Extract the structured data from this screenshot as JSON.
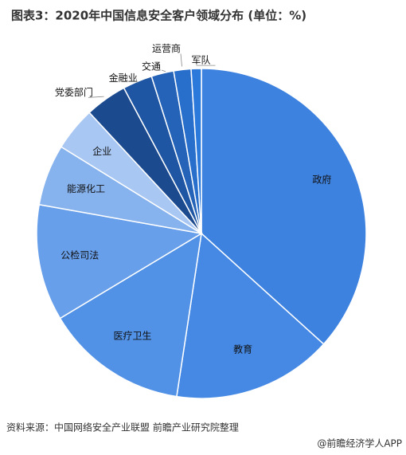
{
  "chart_data": {
    "type": "pie",
    "title": "图表3：2020年中国信息安全客户领域分布 (单位：%)",
    "categories": [
      "政府",
      "教育",
      "医疗卫生",
      "公检司法",
      "能源化工",
      "企业",
      "党委部门",
      "金融业",
      "交通",
      "运营商",
      "军队"
    ],
    "values": [
      36.7,
      15.7,
      14.0,
      11.4,
      6.0,
      4.3,
      4.1,
      2.9,
      2.2,
      1.7,
      1.0
    ],
    "colors": [
      "#3e82e0",
      "#4589e4",
      "#5192e7",
      "#689fea",
      "#86b2ee",
      "#a8c7f3",
      "#1c4a8f",
      "#1f56a3",
      "#2463b8",
      "#286ecb",
      "#2c79dc"
    ],
    "source": "资料来源：中国网络安全产业联盟 前瞻产业研究院整理",
    "brand": "@前瞻经济学人APP"
  }
}
